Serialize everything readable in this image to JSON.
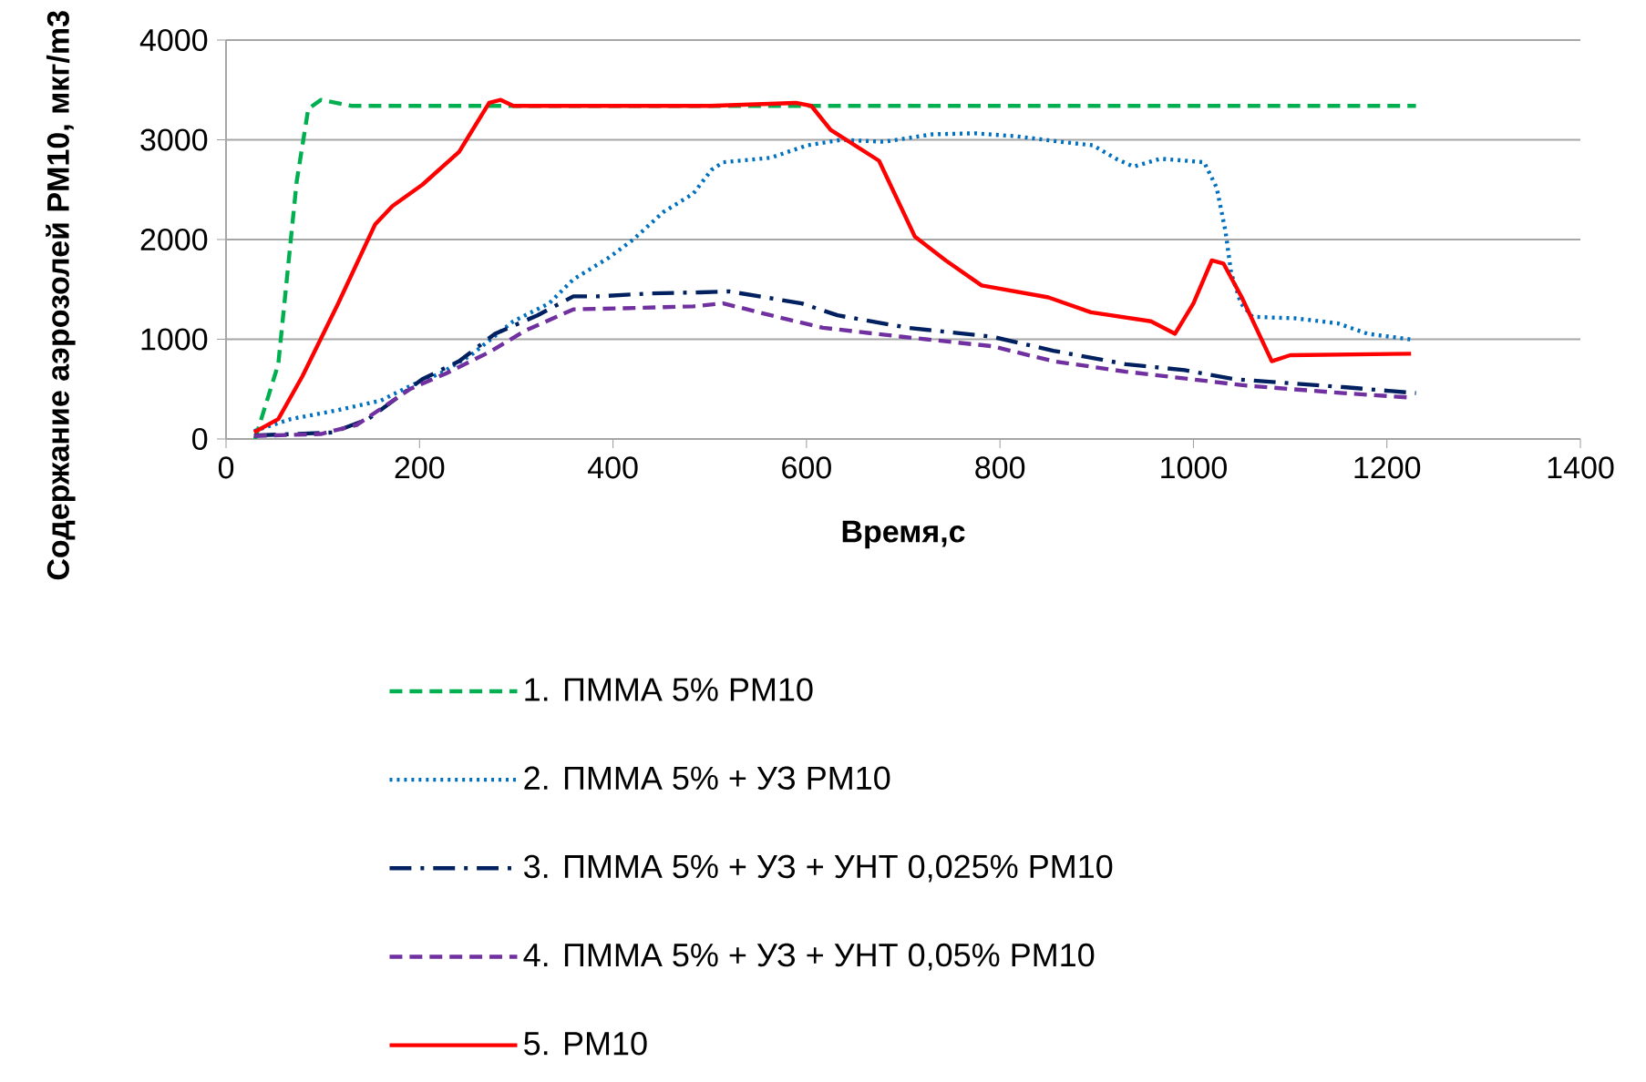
{
  "chart_data": {
    "type": "line",
    "xlabel": "Время,с",
    "ylabel": "Содержание аэрозолей  PM10, мкг/m3",
    "xlim": [
      0,
      1400
    ],
    "xticks": [
      0,
      200,
      400,
      600,
      800,
      1000,
      1200,
      1400
    ],
    "ylim": [
      0,
      4000
    ],
    "yticks": [
      0,
      1000,
      2000,
      3000,
      4000
    ],
    "grid": "y",
    "legend": "bottom",
    "series": [
      {
        "name": "1. ПММА 5% PM10",
        "color": "#00b050",
        "line_style": "dashed",
        "x": [
          30,
          54,
          73,
          85,
          98,
          130,
          300,
          600,
          900,
          1230
        ],
        "values": [
          0,
          750,
          2580,
          3310,
          3400,
          3340,
          3340,
          3340,
          3340,
          3340
        ]
      },
      {
        "name": "2. ПММА 5% + УЗ PM10",
        "color": "#0070c0",
        "line_style": "dotted",
        "x": [
          29,
          67,
          116,
          160,
          191,
          222,
          253,
          297,
          334,
          359,
          396,
          421,
          452,
          483,
          502,
          514,
          563,
          601,
          636,
          680,
          730,
          774,
          817,
          867,
          896,
          920,
          938,
          966,
          1011,
          1024,
          1033,
          1039,
          1049,
          1061,
          1105,
          1149,
          1180,
          1227
        ],
        "values": [
          80,
          200,
          290,
          385,
          535,
          660,
          840,
          1180,
          1360,
          1600,
          1820,
          2000,
          2275,
          2460,
          2700,
          2775,
          2820,
          2945,
          3000,
          2980,
          3055,
          3065,
          3035,
          2975,
          2945,
          2810,
          2730,
          2810,
          2775,
          2520,
          2090,
          1665,
          1360,
          1225,
          1210,
          1160,
          1055,
          995
        ]
      },
      {
        "name": "3. ПММА 5% + УЗ + УНТ 0,025% PM10",
        "color": "#002060",
        "line_style": "dashdot",
        "x": [
          29,
          110,
          147,
          203,
          241,
          278,
          322,
          359,
          384,
          440,
          490,
          520,
          595,
          632,
          705,
          792,
          855,
          930,
          991,
          1042,
          1155,
          1230
        ],
        "values": [
          35,
          65,
          200,
          600,
          780,
          1055,
          1240,
          1430,
          1430,
          1460,
          1470,
          1480,
          1360,
          1240,
          1115,
          1025,
          885,
          750,
          690,
          600,
          520,
          460
        ]
      },
      {
        "name": "4. ПММА 5% + УЗ + УНТ 0,05% PM10",
        "color": "#7030a0",
        "line_style": "dashed",
        "x": [
          29,
          98,
          135,
          191,
          228,
          272,
          309,
          359,
          409,
          483,
          514,
          563,
          617,
          699,
          792,
          855,
          930,
          1055,
          1155,
          1224
        ],
        "values": [
          30,
          50,
          140,
          505,
          660,
          870,
          1085,
          1300,
          1310,
          1330,
          1360,
          1240,
          1115,
          1025,
          930,
          780,
          675,
          535,
          460,
          415
        ]
      },
      {
        "name": "5. PM10",
        "color": "#ff0000",
        "line_style": "solid",
        "x": [
          29,
          54,
          79,
          116,
          154,
          172,
          203,
          241,
          272,
          284,
          297,
          400,
          500,
          589,
          605,
          625,
          675,
          712,
          744,
          781,
          850,
          894,
          956,
          981,
          1000,
          1019,
          1031,
          1050,
          1081,
          1100,
          1225
        ],
        "values": [
          67,
          200,
          630,
          1360,
          2150,
          2335,
          2550,
          2880,
          3370,
          3400,
          3340,
          3340,
          3340,
          3370,
          3340,
          3100,
          2790,
          2030,
          1790,
          1540,
          1420,
          1270,
          1180,
          1055,
          1360,
          1790,
          1760,
          1420,
          780,
          840,
          855
        ]
      }
    ]
  }
}
